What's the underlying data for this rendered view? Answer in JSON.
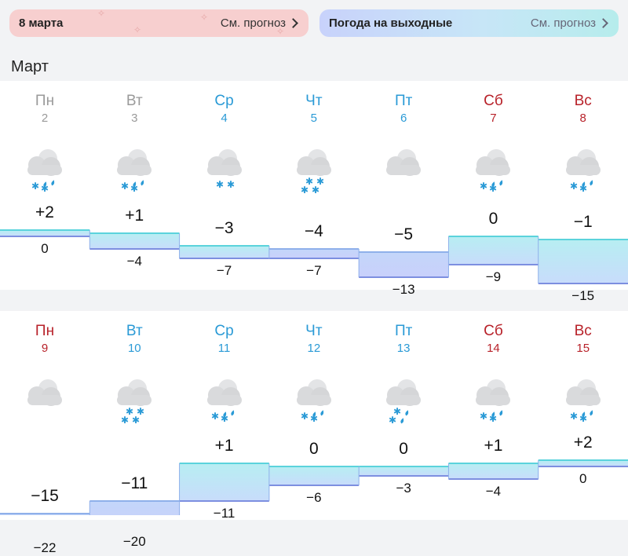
{
  "banners": {
    "left": {
      "title": "8 марта",
      "more": "См. прогноз",
      "color": "#f7cfcf"
    },
    "right": {
      "title": "Погода на выходные",
      "more": "См. прогноз"
    }
  },
  "month": "Март",
  "colors": {
    "past_day": "#9a9a9a",
    "weekday": "#2a9ad6",
    "weekend": "#b8222a",
    "card_bg": "#ffffff",
    "band_warm": "#5bd3dc",
    "band_cold": "#7d8fe0"
  },
  "weeks": [
    {
      "days": [
        {
          "dow": "Пн",
          "num": "2",
          "kind": "past",
          "icon": "cloud-snow-rain-icon",
          "hi": "+2",
          "lo": "0"
        },
        {
          "dow": "Вт",
          "num": "3",
          "kind": "past",
          "icon": "cloud-snow-rain-icon",
          "hi": "+1",
          "lo": "−4"
        },
        {
          "dow": "Ср",
          "num": "4",
          "kind": "work",
          "icon": "cloud-snow-icon",
          "hi": "−3",
          "lo": "−7"
        },
        {
          "dow": "Чт",
          "num": "5",
          "kind": "work",
          "icon": "cloud-heavy-snow-icon",
          "hi": "−4",
          "lo": "−7"
        },
        {
          "dow": "Пт",
          "num": "6",
          "kind": "work",
          "icon": "cloud-icon",
          "hi": "−5",
          "lo": "−13"
        },
        {
          "dow": "Сб",
          "num": "7",
          "kind": "weekend",
          "icon": "cloud-snow-rain-icon",
          "hi": "0",
          "lo": "−9"
        },
        {
          "dow": "Вс",
          "num": "8",
          "kind": "weekend",
          "icon": "cloud-snow-rain-icon",
          "hi": "−1",
          "lo": "−15"
        }
      ]
    },
    {
      "days": [
        {
          "dow": "Пн",
          "num": "9",
          "kind": "weekend",
          "icon": "cloud-icon",
          "hi": "−15",
          "lo": "−22"
        },
        {
          "dow": "Вт",
          "num": "10",
          "kind": "work",
          "icon": "cloud-heavy-snow-icon",
          "hi": "−11",
          "lo": "−20"
        },
        {
          "dow": "Ср",
          "num": "11",
          "kind": "work",
          "icon": "cloud-snow-rain-icon",
          "hi": "+1",
          "lo": "−11"
        },
        {
          "dow": "Чт",
          "num": "12",
          "kind": "work",
          "icon": "cloud-snow-rain-icon",
          "hi": "0",
          "lo": "−6"
        },
        {
          "dow": "Пт",
          "num": "13",
          "kind": "work",
          "icon": "cloud-snow-rain-mix-icon",
          "hi": "0",
          "lo": "−3"
        },
        {
          "dow": "Сб",
          "num": "14",
          "kind": "weekend",
          "icon": "cloud-snow-rain-icon",
          "hi": "+1",
          "lo": "−4"
        },
        {
          "dow": "Вс",
          "num": "15",
          "kind": "weekend",
          "icon": "cloud-snow-rain-icon",
          "hi": "+2",
          "lo": "0"
        }
      ]
    }
  ]
}
